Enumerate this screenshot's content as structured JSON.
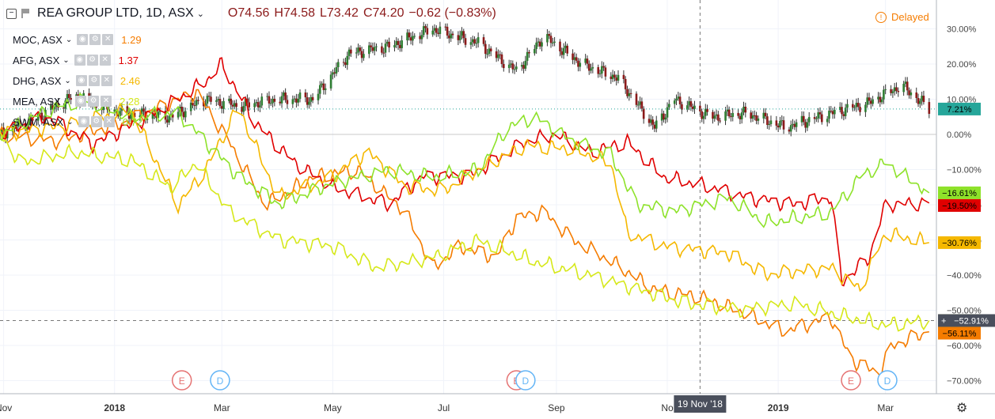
{
  "header": {
    "symbol": "REA GROUP LTD, 1D, ASX",
    "open": "O74.56",
    "high": "H74.58",
    "low": "L73.42",
    "close": "C74.20",
    "change": "−0.62 (−0.83%)"
  },
  "delayed_label": "Delayed",
  "compare": [
    {
      "symbol": "MOC, ASX",
      "value": "1.29",
      "color": "#f57c00"
    },
    {
      "symbol": "AFG, ASX",
      "value": "1.37",
      "color": "#e00000"
    },
    {
      "symbol": "DHG, ASX",
      "value": "2.46",
      "color": "#f5b800"
    },
    {
      "symbol": "MEA, ASX",
      "value": "2.28",
      "color": "#d6e81a"
    },
    {
      "symbol": "SWM, ASX",
      "value": "0.72",
      "color": "#8ee22a"
    }
  ],
  "crosshair": {
    "date_label": "19 Nov '18",
    "value_label": "−52.91%"
  },
  "chart_data": {
    "type": "line",
    "y_unit": "%",
    "ylim": [
      -75,
      35
    ],
    "yticks": [
      "30.00%",
      "20.00%",
      "10.00%",
      "0.00%",
      "−10.00%",
      "−20.00%",
      "−30.00%",
      "−40.00%",
      "−50.00%",
      "−60.00%",
      "−70.00%"
    ],
    "ytick_values": [
      30,
      20,
      10,
      0,
      -10,
      -20,
      -30,
      -40,
      -50,
      -60,
      -70
    ],
    "x_range": [
      "2017-10-30",
      "2019-03-29"
    ],
    "xticks": [
      {
        "label": "Nov",
        "date": "2017-11-01"
      },
      {
        "label": "2018",
        "date": "2018-01-01"
      },
      {
        "label": "Mar",
        "date": "2018-03-01"
      },
      {
        "label": "May",
        "date": "2018-05-01"
      },
      {
        "label": "Jul",
        "date": "2018-07-01"
      },
      {
        "label": "Sep",
        "date": "2018-09-01"
      },
      {
        "label": "No",
        "date": "2018-11-01"
      },
      {
        "label": "2019",
        "date": "2019-01-01"
      },
      {
        "label": "Mar",
        "date": "2019-03-01"
      }
    ],
    "price_series": {
      "name": "REA GROUP LTD",
      "kind": "candlestick",
      "color_up": "#2e7d32",
      "color_down": "#8b1a1a",
      "points": [
        {
          "date": "2017-10-30",
          "value": 0
        },
        {
          "date": "2017-11-20",
          "value": 5
        },
        {
          "date": "2017-12-10",
          "value": 11
        },
        {
          "date": "2018-01-05",
          "value": 6
        },
        {
          "date": "2018-02-01",
          "value": 5
        },
        {
          "date": "2018-02-20",
          "value": 10
        },
        {
          "date": "2018-03-10",
          "value": 8
        },
        {
          "date": "2018-04-01",
          "value": 10
        },
        {
          "date": "2018-04-20",
          "value": 10
        },
        {
          "date": "2018-05-10",
          "value": 23
        },
        {
          "date": "2018-06-01",
          "value": 25
        },
        {
          "date": "2018-06-25",
          "value": 30
        },
        {
          "date": "2018-07-20",
          "value": 26
        },
        {
          "date": "2018-08-10",
          "value": 18
        },
        {
          "date": "2018-08-25",
          "value": 28
        },
        {
          "date": "2018-09-15",
          "value": 20
        },
        {
          "date": "2018-10-05",
          "value": 16
        },
        {
          "date": "2018-10-25",
          "value": 2
        },
        {
          "date": "2018-11-05",
          "value": 10
        },
        {
          "date": "2018-11-25",
          "value": 5
        },
        {
          "date": "2018-12-15",
          "value": 6
        },
        {
          "date": "2019-01-05",
          "value": 2
        },
        {
          "date": "2019-01-30",
          "value": 6
        },
        {
          "date": "2019-02-20",
          "value": 9
        },
        {
          "date": "2019-03-10",
          "value": 14
        },
        {
          "date": "2019-03-25",
          "value": 7.21
        }
      ],
      "last_label": "7.21%",
      "last_color": "#26a69a"
    },
    "series": [
      {
        "name": "MOC, ASX",
        "color": "#f57c00",
        "points": [
          {
            "date": "2017-10-30",
            "value": 0
          },
          {
            "date": "2017-12-01",
            "value": -2
          },
          {
            "date": "2018-01-05",
            "value": 3
          },
          {
            "date": "2018-02-15",
            "value": 12
          },
          {
            "date": "2018-03-05",
            "value": -2
          },
          {
            "date": "2018-03-25",
            "value": -20
          },
          {
            "date": "2018-04-20",
            "value": -12
          },
          {
            "date": "2018-05-15",
            "value": -10
          },
          {
            "date": "2018-06-10",
            "value": -22
          },
          {
            "date": "2018-06-25",
            "value": -38
          },
          {
            "date": "2018-07-10",
            "value": -32
          },
          {
            "date": "2018-07-30",
            "value": -35
          },
          {
            "date": "2018-08-10",
            "value": -24
          },
          {
            "date": "2018-08-25",
            "value": -22
          },
          {
            "date": "2018-09-10",
            "value": -30
          },
          {
            "date": "2018-10-01",
            "value": -36
          },
          {
            "date": "2018-10-25",
            "value": -44
          },
          {
            "date": "2018-11-19",
            "value": -46
          },
          {
            "date": "2018-12-10",
            "value": -50
          },
          {
            "date": "2019-01-05",
            "value": -56
          },
          {
            "date": "2019-01-30",
            "value": -52
          },
          {
            "date": "2019-02-10",
            "value": -64
          },
          {
            "date": "2019-02-25",
            "value": -68
          },
          {
            "date": "2019-03-05",
            "value": -60
          },
          {
            "date": "2019-03-25",
            "value": -56.11
          }
        ],
        "last_label": "−56.11%"
      },
      {
        "name": "AFG, ASX",
        "color": "#e00000",
        "points": [
          {
            "date": "2017-10-30",
            "value": 0
          },
          {
            "date": "2017-11-25",
            "value": 5
          },
          {
            "date": "2017-12-20",
            "value": -3
          },
          {
            "date": "2018-01-20",
            "value": 5
          },
          {
            "date": "2018-02-20",
            "value": 15
          },
          {
            "date": "2018-03-01",
            "value": 20
          },
          {
            "date": "2018-03-20",
            "value": 3
          },
          {
            "date": "2018-04-10",
            "value": -8
          },
          {
            "date": "2018-05-01",
            "value": -15
          },
          {
            "date": "2018-06-01",
            "value": -20
          },
          {
            "date": "2018-06-20",
            "value": -12
          },
          {
            "date": "2018-07-15",
            "value": -12
          },
          {
            "date": "2018-08-15",
            "value": -2
          },
          {
            "date": "2018-09-01",
            "value": 0
          },
          {
            "date": "2018-09-20",
            "value": -5
          },
          {
            "date": "2018-10-10",
            "value": -2
          },
          {
            "date": "2018-10-30",
            "value": -12
          },
          {
            "date": "2018-11-25",
            "value": -15
          },
          {
            "date": "2018-12-15",
            "value": -18
          },
          {
            "date": "2019-01-10",
            "value": -20
          },
          {
            "date": "2019-01-30",
            "value": -18
          },
          {
            "date": "2019-02-05",
            "value": -42
          },
          {
            "date": "2019-02-20",
            "value": -35
          },
          {
            "date": "2019-03-01",
            "value": -20
          },
          {
            "date": "2019-03-25",
            "value": -19.5
          }
        ],
        "last_label": "−19.50%"
      },
      {
        "name": "DHG, ASX",
        "color": "#f5b800",
        "points": [
          {
            "date": "2017-10-30",
            "value": 0
          },
          {
            "date": "2017-12-01",
            "value": 2
          },
          {
            "date": "2018-01-10",
            "value": 7
          },
          {
            "date": "2018-02-05",
            "value": -20
          },
          {
            "date": "2018-02-20",
            "value": -10
          },
          {
            "date": "2018-03-10",
            "value": 8
          },
          {
            "date": "2018-04-01",
            "value": -18
          },
          {
            "date": "2018-05-01",
            "value": -12
          },
          {
            "date": "2018-05-20",
            "value": -5
          },
          {
            "date": "2018-06-10",
            "value": -15
          },
          {
            "date": "2018-07-01",
            "value": -16
          },
          {
            "date": "2018-07-20",
            "value": -10
          },
          {
            "date": "2018-08-15",
            "value": -3
          },
          {
            "date": "2018-09-10",
            "value": -4
          },
          {
            "date": "2018-10-01",
            "value": -8
          },
          {
            "date": "2018-10-10",
            "value": -28
          },
          {
            "date": "2018-11-01",
            "value": -32
          },
          {
            "date": "2018-12-05",
            "value": -34
          },
          {
            "date": "2018-12-25",
            "value": -40
          },
          {
            "date": "2019-01-30",
            "value": -38
          },
          {
            "date": "2019-02-15",
            "value": -44
          },
          {
            "date": "2019-03-01",
            "value": -28
          },
          {
            "date": "2019-03-25",
            "value": -30.76
          }
        ],
        "last_label": "−30.76%"
      },
      {
        "name": "MEA, ASX",
        "color": "#d6e81a",
        "points": [
          {
            "date": "2017-10-30",
            "value": 0
          },
          {
            "date": "2017-11-10",
            "value": -8
          },
          {
            "date": "2017-12-10",
            "value": -5
          },
          {
            "date": "2018-01-10",
            "value": -7
          },
          {
            "date": "2018-02-01",
            "value": -15
          },
          {
            "date": "2018-02-15",
            "value": -8
          },
          {
            "date": "2018-03-05",
            "value": -22
          },
          {
            "date": "2018-04-01",
            "value": -30
          },
          {
            "date": "2018-05-01",
            "value": -32
          },
          {
            "date": "2018-05-25",
            "value": -38
          },
          {
            "date": "2018-06-25",
            "value": -35
          },
          {
            "date": "2018-07-20",
            "value": -30
          },
          {
            "date": "2018-08-20",
            "value": -36
          },
          {
            "date": "2018-09-20",
            "value": -40
          },
          {
            "date": "2018-10-15",
            "value": -44
          },
          {
            "date": "2018-11-10",
            "value": -48
          },
          {
            "date": "2018-12-10",
            "value": -50
          },
          {
            "date": "2019-01-10",
            "value": -48
          },
          {
            "date": "2019-02-10",
            "value": -52
          },
          {
            "date": "2019-03-01",
            "value": -54
          },
          {
            "date": "2019-03-25",
            "value": -52.91
          }
        ],
        "last_label": "−52.91%"
      },
      {
        "name": "SWM, ASX",
        "color": "#8ee22a",
        "points": [
          {
            "date": "2017-10-30",
            "value": 0
          },
          {
            "date": "2017-11-25",
            "value": 7
          },
          {
            "date": "2017-12-15",
            "value": 10
          },
          {
            "date": "2018-01-10",
            "value": 5
          },
          {
            "date": "2018-02-05",
            "value": 6
          },
          {
            "date": "2018-02-20",
            "value": -2
          },
          {
            "date": "2018-03-10",
            "value": -12
          },
          {
            "date": "2018-04-01",
            "value": -20
          },
          {
            "date": "2018-05-01",
            "value": -14
          },
          {
            "date": "2018-06-01",
            "value": -10
          },
          {
            "date": "2018-06-25",
            "value": -12
          },
          {
            "date": "2018-07-20",
            "value": -10
          },
          {
            "date": "2018-08-05",
            "value": 2
          },
          {
            "date": "2018-08-20",
            "value": 5
          },
          {
            "date": "2018-09-10",
            "value": -2
          },
          {
            "date": "2018-10-01",
            "value": -6
          },
          {
            "date": "2018-10-15",
            "value": -20
          },
          {
            "date": "2018-11-05",
            "value": -22
          },
          {
            "date": "2018-12-05",
            "value": -18
          },
          {
            "date": "2018-12-25",
            "value": -25
          },
          {
            "date": "2019-01-30",
            "value": -22
          },
          {
            "date": "2019-02-15",
            "value": -12
          },
          {
            "date": "2019-03-01",
            "value": -8
          },
          {
            "date": "2019-03-25",
            "value": -16.61
          }
        ],
        "last_label": "−16.61%"
      }
    ],
    "events": [
      {
        "label": "E",
        "date": "2018-02-07",
        "color": "#e57373"
      },
      {
        "label": "D",
        "date": "2018-02-28",
        "color": "#64b5f6"
      },
      {
        "label": "E",
        "date": "2018-08-10",
        "color": "#e57373"
      },
      {
        "label": "D",
        "date": "2018-08-15",
        "color": "#64b5f6"
      },
      {
        "label": "E",
        "date": "2019-02-10",
        "color": "#e57373"
      },
      {
        "label": "D",
        "date": "2019-03-02",
        "color": "#64b5f6"
      }
    ],
    "grid": true,
    "legend": "top-left",
    "crosshair_date": "2018-11-19",
    "crosshair_value": -52.91
  }
}
